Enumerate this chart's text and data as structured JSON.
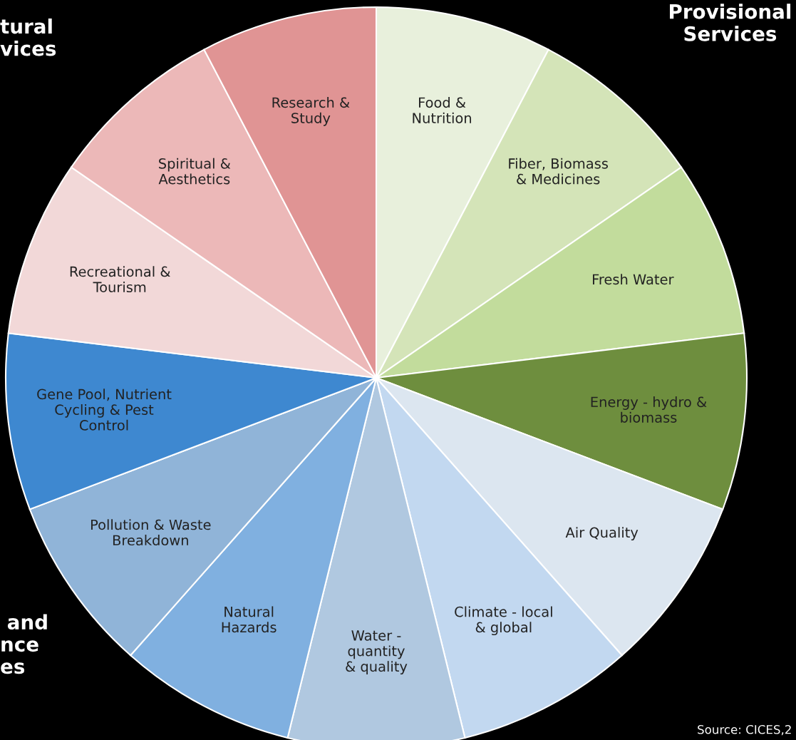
{
  "chart_data": {
    "type": "pie",
    "categories": [
      "Food &\nNutrition",
      "Fiber, Biomass\n& Medicines",
      "Fresh Water",
      "Energy - hydro &\nbiomass",
      "Air Quality",
      "Climate - local\n& global",
      "Water -\nquantity\n& quality",
      "Natural\nHazards",
      "Pollution & Waste\nBreakdown",
      "Gene Pool, Nutrient\nCycling & Pest\nControl",
      "Recreational &\nTourism",
      "Spiritual &\nAesthetics",
      "Research &\nStudy"
    ],
    "values": [
      7.69,
      7.69,
      7.69,
      7.69,
      7.69,
      7.69,
      7.69,
      7.69,
      7.69,
      7.69,
      7.69,
      7.69,
      7.69
    ],
    "colors": [
      "#e8f0dc",
      "#d4e4b8",
      "#c2dc9c",
      "#6e8e3e",
      "#dce6f0",
      "#c2d8f0",
      "#b0c8e0",
      "#80b0e0",
      "#90b4d8",
      "#3e88d0",
      "#f2d8d8",
      "#ecb8b8",
      "#e09494"
    ],
    "annotations": [
      "tural\nvices",
      "Provisional\nServices",
      " and\nnce\nes",
      "Source: CICES,2"
    ]
  }
}
